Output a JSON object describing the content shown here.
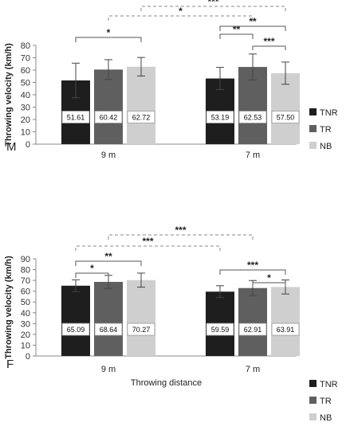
{
  "chart_data": [
    {
      "type": "bar",
      "panel_label": "M",
      "categories": [
        "9 m",
        "7 m"
      ],
      "series": [
        {
          "name": "TNR",
          "values": [
            51.61,
            53.19
          ],
          "errors": [
            14,
            9
          ],
          "color": "#1e1e1e"
        },
        {
          "name": "TR",
          "values": [
            60.42,
            62.53
          ],
          "errors": [
            8,
            10.5
          ],
          "color": "#5f5f5f"
        },
        {
          "name": "NB",
          "values": [
            62.72,
            57.5
          ],
          "errors": [
            7.5,
            9
          ],
          "color": "#cfcfcf"
        }
      ],
      "value_labels": [
        [
          "51.61",
          "53.19"
        ],
        [
          "60.42",
          "62.53"
        ],
        [
          "62.72",
          "57.50"
        ]
      ],
      "ylabel": "Throwing velocity (km/h)",
      "xlabel": "",
      "ylim": [
        0,
        80
      ],
      "yticks": [
        0,
        10,
        20,
        30,
        40,
        50,
        60,
        70,
        80
      ],
      "legend_position": "right",
      "significance": [
        {
          "from": [
            0,
            0
          ],
          "to": [
            0,
            2
          ],
          "label": "*",
          "style": "solid"
        },
        {
          "from": [
            1,
            0
          ],
          "to": [
            1,
            1
          ],
          "label": "**",
          "style": "solid"
        },
        {
          "from": [
            1,
            0
          ],
          "to": [
            1,
            2
          ],
          "label": "**",
          "style": "solid"
        },
        {
          "from": [
            1,
            1
          ],
          "to": [
            1,
            2
          ],
          "label": "***",
          "style": "solid"
        },
        {
          "from": [
            0,
            1
          ],
          "to": [
            1,
            1
          ],
          "label": "*",
          "style": "dashed"
        },
        {
          "from": [
            0,
            2
          ],
          "to": [
            1,
            2
          ],
          "label": "***",
          "style": "dashed"
        }
      ]
    },
    {
      "type": "bar",
      "panel_label": "F",
      "categories": [
        "9 m",
        "7 m"
      ],
      "series": [
        {
          "name": "TNR",
          "values": [
            65.09,
            59.59
          ],
          "errors": [
            5.5,
            5.5
          ],
          "color": "#1e1e1e"
        },
        {
          "name": "TR",
          "values": [
            68.64,
            62.91
          ],
          "errors": [
            6,
            7
          ],
          "color": "#5f5f5f"
        },
        {
          "name": "NB",
          "values": [
            70.27,
            63.91
          ],
          "errors": [
            6.5,
            6.5
          ],
          "color": "#cfcfcf"
        }
      ],
      "value_labels": [
        [
          "65.09",
          "59.59"
        ],
        [
          "68.64",
          "62.91"
        ],
        [
          "70.27",
          "63.91"
        ]
      ],
      "ylabel": "Throwing velocity (km/h)",
      "xlabel": "Throwing distance",
      "ylim": [
        0,
        90
      ],
      "yticks": [
        0,
        10,
        20,
        30,
        40,
        50,
        60,
        70,
        80,
        90
      ],
      "legend_position": "right",
      "significance": [
        {
          "from": [
            0,
            0
          ],
          "to": [
            0,
            1
          ],
          "label": "*",
          "style": "solid"
        },
        {
          "from": [
            0,
            0
          ],
          "to": [
            0,
            2
          ],
          "label": "**",
          "style": "solid"
        },
        {
          "from": [
            1,
            0
          ],
          "to": [
            1,
            2
          ],
          "label": "***",
          "style": "solid"
        },
        {
          "from": [
            1,
            1
          ],
          "to": [
            1,
            2
          ],
          "label": "*",
          "style": "solid"
        },
        {
          "from": [
            0,
            0
          ],
          "to": [
            1,
            0
          ],
          "label": "***",
          "style": "dashed"
        },
        {
          "from": [
            0,
            1
          ],
          "to": [
            1,
            1
          ],
          "label": "***",
          "style": "dashed"
        }
      ]
    }
  ]
}
